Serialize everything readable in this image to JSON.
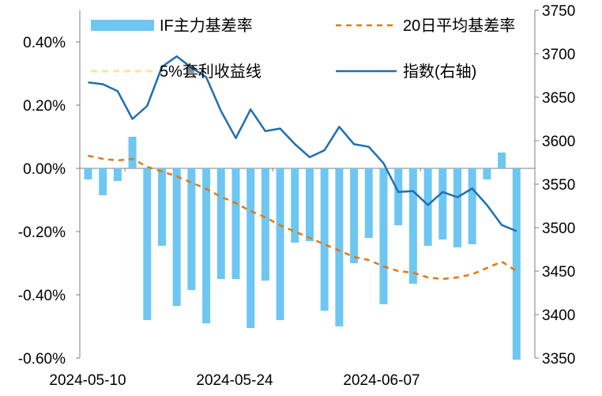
{
  "chart_data": {
    "type": "bar+line",
    "x_tick_labels": [
      "2024-05-10",
      "2024-05-24",
      "2024-06-07"
    ],
    "left_axis": {
      "ylim": [
        -0.6,
        0.5
      ],
      "ticks": [
        -0.6,
        -0.4,
        -0.2,
        0.0,
        0.2,
        0.4
      ],
      "tick_labels": [
        "-0.60%",
        "-0.40%",
        "-0.20%",
        "0.00%",
        "0.20%",
        "0.40%"
      ]
    },
    "right_axis": {
      "ylim": [
        3350,
        3750
      ],
      "ticks": [
        3350,
        3400,
        3450,
        3500,
        3550,
        3600,
        3650,
        3700,
        3750
      ],
      "tick_labels": [
        "3350",
        "3400",
        "3450",
        "3500",
        "3550",
        "3600",
        "3650",
        "3700",
        "3750"
      ]
    },
    "legend": {
      "bar": "IF主力基差率",
      "ma20": "20日平均基差率",
      "arb": "5%套利收益线",
      "index": "指数(右轴)"
    },
    "colors": {
      "bar": "#6EC6F2",
      "ma20": "#E07A10",
      "arb": "#FFE39A",
      "index": "#1F6FB2"
    },
    "series": [
      {
        "key": "basis",
        "name": "IF主力基差率",
        "axis": "left",
        "values": [
          -0.035,
          -0.085,
          -0.04,
          0.1,
          -0.48,
          -0.245,
          -0.435,
          -0.385,
          -0.49,
          -0.35,
          -0.35,
          -0.505,
          -0.355,
          -0.48,
          -0.235,
          -0.23,
          -0.45,
          -0.5,
          -0.3,
          -0.22,
          -0.43,
          -0.18,
          -0.365,
          -0.245,
          -0.225,
          -0.25,
          -0.24,
          -0.035,
          0.05,
          -0.605
        ]
      },
      {
        "key": "ma20",
        "name": "20日平均基差率",
        "axis": "left",
        "values": [
          0.04,
          0.03,
          0.025,
          0.03,
          0.005,
          -0.01,
          -0.025,
          -0.045,
          -0.065,
          -0.09,
          -0.11,
          -0.135,
          -0.155,
          -0.18,
          -0.2,
          -0.22,
          -0.24,
          -0.26,
          -0.28,
          -0.29,
          -0.31,
          -0.325,
          -0.33,
          -0.345,
          -0.35,
          -0.345,
          -0.335,
          -0.315,
          -0.295,
          -0.325
        ]
      },
      {
        "key": "index",
        "name": "指数(右轴)",
        "axis": "right",
        "values": [
          3667,
          3665,
          3657,
          3625,
          3640,
          3685,
          3697,
          3684,
          3673,
          3634,
          3603,
          3636,
          3611,
          3614,
          3596,
          3581,
          3589,
          3616,
          3596,
          3593,
          3574,
          3541,
          3542,
          3526,
          3541,
          3535,
          3545,
          3526,
          3503,
          3496
        ]
      }
    ]
  }
}
